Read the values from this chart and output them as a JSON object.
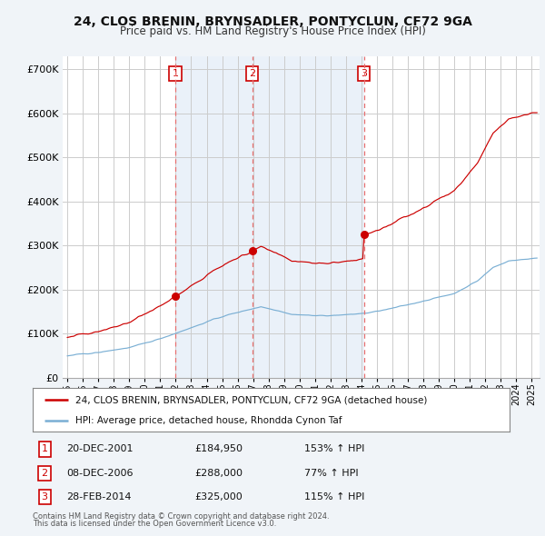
{
  "title": "24, CLOS BRENIN, BRYNSADLER, PONTYCLUN, CF72 9GA",
  "subtitle": "Price paid vs. HM Land Registry's House Price Index (HPI)",
  "red_line_label": "24, CLOS BRENIN, BRYNSADLER, PONTYCLUN, CF72 9GA (detached house)",
  "blue_line_label": "HPI: Average price, detached house, Rhondda Cynon Taf",
  "transactions": [
    {
      "num": 1,
      "date": "20-DEC-2001",
      "price": "£184,950",
      "pct": "153% ↑ HPI",
      "year": 2001.97
    },
    {
      "num": 2,
      "date": "08-DEC-2006",
      "price": "£288,000",
      "pct": "77% ↑ HPI",
      "year": 2006.94
    },
    {
      "num": 3,
      "date": "28-FEB-2014",
      "price": "£325,000",
      "pct": "115% ↑ HPI",
      "year": 2014.16
    }
  ],
  "transaction_prices": [
    184950,
    288000,
    325000
  ],
  "footer1": "Contains HM Land Registry data © Crown copyright and database right 2024.",
  "footer2": "This data is licensed under the Open Government Licence v3.0.",
  "ylim": [
    0,
    730000
  ],
  "yticks": [
    0,
    100000,
    200000,
    300000,
    400000,
    500000,
    600000,
    700000
  ],
  "ytick_labels": [
    "£0",
    "£100K",
    "£200K",
    "£300K",
    "£400K",
    "£500K",
    "£600K",
    "£700K"
  ],
  "bg_color": "#f0f4f8",
  "plot_bg_color": "#ffffff",
  "red_color": "#cc0000",
  "blue_color": "#7aafd4",
  "shade_color": "#dce8f5",
  "vline_color": "#e87070",
  "grid_color": "#cccccc",
  "title_color": "#111111",
  "subtitle_color": "#333333"
}
